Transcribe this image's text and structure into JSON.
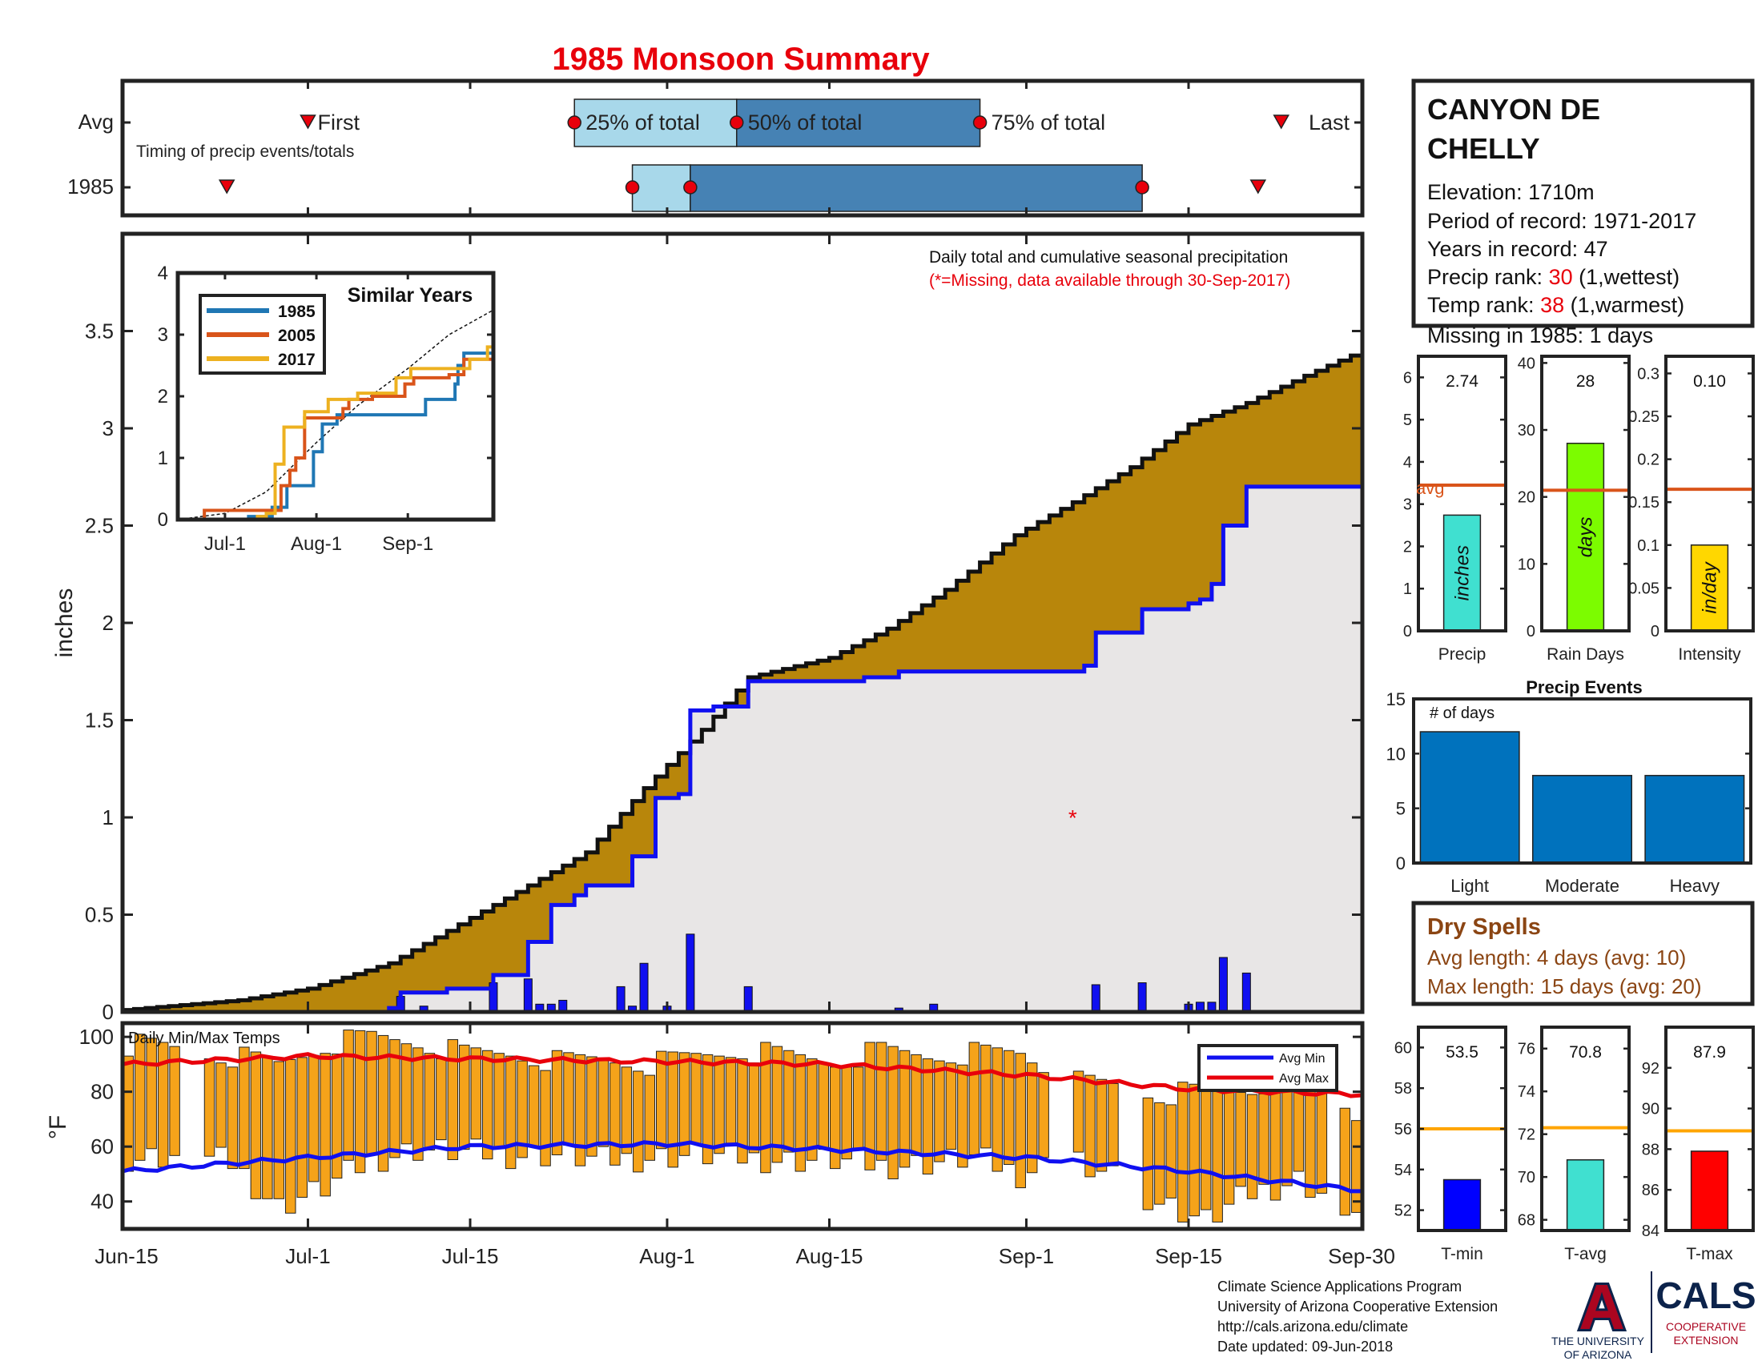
{
  "title": "1985 Monsoon Summary",
  "colors": {
    "title": "#e8000b",
    "frame": "#222222",
    "light_blue": "#a8d8ea",
    "mid_blue": "#4682b4",
    "cum_fill": "#b8860b",
    "avg_fill": "#e8e6e6",
    "daily_bar": "#1010f0",
    "avg_line": "#1010f0",
    "temp_bar": "#f5a31a",
    "max_line": "#e8000b",
    "min_line": "#1010f0",
    "series_1985": "#1f77b4",
    "series_2005": "#d9541a",
    "series_2017": "#edb120",
    "precip_bar": "#40e0d0",
    "raindays_bar": "#7cfc00",
    "intensity_bar": "#ffd700",
    "avg_ref": "#d9541a",
    "events_bar": "#0072bd",
    "dry_text": "#8b4513",
    "rank_red": "#e8000b",
    "tavg_line": "#ffa500",
    "tmin_bar": "#0000ff",
    "tavg_bar": "#40e0d0",
    "tmax_bar": "#ff0000",
    "logo_navy": "#0c234b",
    "logo_red": "#ab0520"
  },
  "timing": {
    "row_labels": [
      "Avg",
      "1985"
    ],
    "subtitle": "Timing of precip events/totals",
    "avg_labels": {
      "first": "First",
      "p25": "25% of total",
      "p50": "50% of total",
      "p75": "75% of total",
      "last": "Last"
    },
    "avg": {
      "first": "Jul-1",
      "p25": "Jul-24",
      "p50": "Aug-7",
      "p75": "Aug-28",
      "last": "Sep-23"
    },
    "year": {
      "first": "Jun-24",
      "p25": "Jul-29",
      "p50": "Aug-3",
      "p75": "Sep-11",
      "last": "Sep-21"
    }
  },
  "chart_data": [
    {
      "id": "cumulative",
      "type": "area",
      "title": "Daily total and cumulative seasonal precipitation",
      "note": "(*=Missing, data available through 30-Sep-2017)",
      "ylabel": "inches",
      "ylim": [
        0,
        4.0
      ],
      "yticks": [
        "0",
        "0.5",
        "1",
        "1.5",
        "2",
        "2.5",
        "3",
        "3.5"
      ],
      "xticks": [
        "Jun-15",
        "Jul-1",
        "Jul-15",
        "Aug-1",
        "Aug-15",
        "Sep-1",
        "Sep-15",
        "Sep-30"
      ],
      "avg_cumulative": [
        [
          "Jun-15",
          0.01
        ],
        [
          "Jun-25",
          0.06
        ],
        [
          "Jul-1",
          0.12
        ],
        [
          "Jul-8",
          0.25
        ],
        [
          "Jul-14",
          0.45
        ],
        [
          "Jul-20",
          0.65
        ],
        [
          "Jul-25",
          0.82
        ],
        [
          "Jul-30",
          1.15
        ],
        [
          "Aug-4",
          1.45
        ],
        [
          "Aug-8",
          1.72
        ],
        [
          "Aug-15",
          1.82
        ],
        [
          "Aug-20",
          1.97
        ],
        [
          "Aug-25",
          2.17
        ],
        [
          "Aug-31",
          2.45
        ],
        [
          "Sep-5",
          2.62
        ],
        [
          "Sep-10",
          2.8
        ],
        [
          "Sep-15",
          3.02
        ],
        [
          "Sep-20",
          3.13
        ],
        [
          "Sep-25",
          3.27
        ],
        [
          "Sep-30",
          3.4
        ]
      ],
      "cumulative_1985": [
        [
          "Jun-15",
          0.0
        ],
        [
          "Jul-8",
          0.02
        ],
        [
          "Jul-9",
          0.1
        ],
        [
          "Jul-12",
          0.1
        ],
        [
          "Jul-13",
          0.12
        ],
        [
          "Jul-16",
          0.12
        ],
        [
          "Jul-17",
          0.19
        ],
        [
          "Jul-19",
          0.19
        ],
        [
          "Jul-20",
          0.36
        ],
        [
          "Jul-21",
          0.36
        ],
        [
          "Jul-22",
          0.55
        ],
        [
          "Jul-24",
          0.6
        ],
        [
          "Jul-25",
          0.65
        ],
        [
          "Jul-29",
          0.8
        ],
        [
          "Jul-31",
          1.1
        ],
        [
          "Aug-2",
          1.12
        ],
        [
          "Aug-3",
          1.55
        ],
        [
          "Aug-5",
          1.57
        ],
        [
          "Aug-8",
          1.7
        ],
        [
          "Aug-18",
          1.72
        ],
        [
          "Aug-21",
          1.75
        ],
        [
          "Aug-22",
          1.75
        ],
        [
          "Sep-6",
          1.78
        ],
        [
          "Sep-7",
          1.95
        ],
        [
          "Sep-11",
          2.07
        ],
        [
          "Sep-15",
          2.1
        ],
        [
          "Sep-16",
          2.12
        ],
        [
          "Sep-17",
          2.2
        ],
        [
          "Sep-18",
          2.5
        ],
        [
          "Sep-20",
          2.7
        ],
        [
          "Sep-30",
          2.74
        ]
      ],
      "daily_1985": [
        [
          "Jul-9",
          0.08
        ],
        [
          "Jul-11",
          0.03
        ],
        [
          "Jul-17",
          0.15
        ],
        [
          "Jul-20",
          0.17
        ],
        [
          "Jul-21",
          0.04
        ],
        [
          "Jul-22",
          0.04
        ],
        [
          "Jul-23",
          0.06
        ],
        [
          "Jul-28",
          0.13
        ],
        [
          "Jul-29",
          0.03
        ],
        [
          "Jul-30",
          0.25
        ],
        [
          "Aug-1",
          0.03
        ],
        [
          "Aug-3",
          0.4
        ],
        [
          "Aug-8",
          0.13
        ],
        [
          "Aug-21",
          0.02
        ],
        [
          "Aug-24",
          0.04
        ],
        [
          "Sep-7",
          0.14
        ],
        [
          "Sep-11",
          0.15
        ],
        [
          "Sep-15",
          0.04
        ],
        [
          "Sep-16",
          0.05
        ],
        [
          "Sep-17",
          0.05
        ],
        [
          "Sep-18",
          0.28
        ],
        [
          "Sep-20",
          0.2
        ]
      ],
      "missing_marker": [
        "Sep-5",
        1.0
      ]
    },
    {
      "id": "similar_years",
      "type": "line",
      "title": "Similar Years",
      "ylim": [
        0,
        4
      ],
      "yticks": [
        "0",
        "1",
        "2",
        "3",
        "4"
      ],
      "xticks": [
        "Jul-1",
        "Aug-1",
        "Sep-1"
      ],
      "series": [
        {
          "name": "1985",
          "points": [
            [
              "Jun-15",
              0.0
            ],
            [
              "Jul-9",
              0.05
            ],
            [
              "Jul-17",
              0.2
            ],
            [
              "Jul-22",
              0.55
            ],
            [
              "Jul-31",
              1.1
            ],
            [
              "Aug-3",
              1.55
            ],
            [
              "Aug-8",
              1.7
            ],
            [
              "Sep-7",
              1.95
            ],
            [
              "Sep-17",
              2.2
            ],
            [
              "Sep-18",
              2.5
            ],
            [
              "Sep-20",
              2.7
            ],
            [
              "Sep-30",
              2.74
            ]
          ]
        },
        {
          "name": "2005",
          "points": [
            [
              "Jun-15",
              0.0
            ],
            [
              "Jun-24",
              0.15
            ],
            [
              "Jul-12",
              0.15
            ],
            [
              "Jul-20",
              0.55
            ],
            [
              "Jul-23",
              0.8
            ],
            [
              "Jul-25",
              1.0
            ],
            [
              "Jul-28",
              1.65
            ],
            [
              "Aug-10",
              1.8
            ],
            [
              "Aug-12",
              1.95
            ],
            [
              "Aug-20",
              2.0
            ],
            [
              "Aug-31",
              2.2
            ],
            [
              "Sep-3",
              2.3
            ],
            [
              "Sep-15",
              2.35
            ],
            [
              "Sep-20",
              2.6
            ],
            [
              "Sep-30",
              2.65
            ]
          ]
        },
        {
          "name": "2017",
          "points": [
            [
              "Jun-15",
              0.0
            ],
            [
              "Jul-12",
              0.05
            ],
            [
              "Jul-15",
              0.1
            ],
            [
              "Jul-18",
              0.9
            ],
            [
              "Jul-21",
              1.5
            ],
            [
              "Jul-28",
              1.75
            ],
            [
              "Aug-5",
              1.95
            ],
            [
              "Aug-15",
              2.05
            ],
            [
              "Aug-28",
              2.3
            ],
            [
              "Sep-2",
              2.45
            ],
            [
              "Sep-15",
              2.45
            ],
            [
              "Sep-22",
              2.6
            ],
            [
              "Sep-28",
              2.8
            ],
            [
              "Sep-30",
              3.1
            ]
          ]
        }
      ],
      "avg_line": [
        [
          "Jun-15",
          0.0
        ],
        [
          "Jul-1",
          0.1
        ],
        [
          "Jul-15",
          0.45
        ],
        [
          "Aug-1",
          1.25
        ],
        [
          "Aug-15",
          1.85
        ],
        [
          "Sep-1",
          2.45
        ],
        [
          "Sep-15",
          3.0
        ],
        [
          "Sep-30",
          3.4
        ]
      ]
    },
    {
      "id": "temps",
      "type": "bar",
      "title": "Daily Min/Max Temps",
      "ylabel": "°F",
      "ylim": [
        30,
        105
      ],
      "yticks": [
        "40",
        "60",
        "80",
        "100"
      ],
      "legend": [
        "Avg Min",
        "Avg Max"
      ],
      "daily_range_sample": [
        [
          "Jun-16",
          56,
          97
        ],
        [
          "Jun-20",
          57,
          95
        ],
        [
          "Jun-24",
          54,
          93
        ],
        [
          "Jun-28",
          38,
          90
        ],
        [
          "Jul-2",
          45,
          97
        ],
        [
          "Jul-6",
          55,
          100
        ],
        [
          "Jul-10",
          59,
          98
        ],
        [
          "Jul-14",
          58,
          94
        ],
        [
          "Jul-18",
          57,
          94
        ],
        [
          "Jul-22",
          57,
          91
        ],
        [
          "Jul-26",
          55,
          92
        ],
        [
          "Jul-30",
          56,
          90
        ],
        [
          "Aug-3",
          57,
          93
        ],
        [
          "Aug-7",
          56,
          95
        ],
        [
          "Aug-11",
          55,
          93
        ],
        [
          "Aug-15",
          55,
          91
        ],
        [
          "Aug-19",
          53,
          95
        ],
        [
          "Aug-23",
          54,
          93
        ],
        [
          "Aug-27",
          56,
          94
        ],
        [
          "Aug-31",
          50,
          94
        ],
        [
          "Sep-4",
          56,
          84
        ],
        [
          "Sep-8",
          48,
          82
        ],
        [
          "Sep-12",
          40,
          79
        ],
        [
          "Sep-16",
          33,
          80
        ],
        [
          "Sep-20",
          43,
          81
        ],
        [
          "Sep-24",
          48,
          86
        ],
        [
          "Sep-28",
          38,
          75
        ],
        [
          "Sep-30",
          32,
          68
        ]
      ],
      "avg_max": [
        [
          "Jun-15",
          90
        ],
        [
          "Jul-1",
          93
        ],
        [
          "Jul-15",
          92
        ],
        [
          "Aug-1",
          91
        ],
        [
          "Aug-15",
          90
        ],
        [
          "Sep-1",
          86
        ],
        [
          "Sep-15",
          81
        ],
        [
          "Sep-30",
          79
        ]
      ],
      "avg_min": [
        [
          "Jun-15",
          51
        ],
        [
          "Jul-1",
          56
        ],
        [
          "Jul-15",
          60
        ],
        [
          "Aug-1",
          61
        ],
        [
          "Aug-15",
          59
        ],
        [
          "Sep-1",
          56
        ],
        [
          "Sep-15",
          51
        ],
        [
          "Sep-30",
          44
        ]
      ]
    },
    {
      "id": "season_totals",
      "type": "bar",
      "panels": [
        {
          "label": "Precip",
          "unit": "inches",
          "value": 2.74,
          "value_label": "2.74",
          "avg": 3.45,
          "ylim": [
            0,
            6.5
          ],
          "yticks": [
            "0",
            "1",
            "2",
            "3",
            "4",
            "5",
            "6"
          ]
        },
        {
          "label": "Rain Days",
          "unit": "days",
          "value": 28,
          "value_label": "28",
          "avg": 21,
          "ylim": [
            0,
            41
          ],
          "yticks": [
            "0",
            "10",
            "20",
            "30",
            "40"
          ]
        },
        {
          "label": "Intensity",
          "unit": "in/day",
          "value": 0.1,
          "value_label": "0.10",
          "avg": 0.165,
          "ylim": [
            0,
            0.32
          ],
          "yticks": [
            "0",
            "0.05",
            "0.1",
            "0.15",
            "0.2",
            "0.25",
            "0.3"
          ]
        }
      ],
      "avg_label": "avg"
    },
    {
      "id": "precip_events",
      "type": "bar",
      "title": "Precip Events",
      "ylabel": "# of days",
      "categories": [
        "Light",
        "Moderate",
        "Heavy"
      ],
      "values": [
        12,
        8,
        8
      ],
      "ylim": [
        0,
        15
      ],
      "yticks": [
        "0",
        "5",
        "10",
        "15"
      ]
    },
    {
      "id": "season_temps",
      "type": "bar",
      "panels": [
        {
          "label": "T-min",
          "value": 53.5,
          "value_label": "53.5",
          "avg": 56,
          "ylim": [
            51,
            61
          ],
          "yticks": [
            "52",
            "54",
            "56",
            "58",
            "60"
          ]
        },
        {
          "label": "T-avg",
          "value": 70.8,
          "value_label": "70.8",
          "avg": 72.3,
          "ylim": [
            67.5,
            77
          ],
          "yticks": [
            "68",
            "70",
            "72",
            "74",
            "76"
          ]
        },
        {
          "label": "T-max",
          "value": 87.9,
          "value_label": "87.9",
          "avg": 88.9,
          "ylim": [
            84,
            94
          ],
          "yticks": [
            "84",
            "86",
            "88",
            "90",
            "92"
          ]
        }
      ]
    }
  ],
  "station": {
    "name_line1": "CANYON DE",
    "name_line2": "CHELLY",
    "elevation": "Elevation: 1710m",
    "period": "Period of record: 1971-2017",
    "years": "Years in record: 47",
    "precip_rank_label": "Precip rank: ",
    "precip_rank": "30",
    "precip_rank_note": " (1,wettest)",
    "temp_rank_label": "Temp rank: ",
    "temp_rank": "38",
    "temp_rank_note": " (1,warmest)",
    "missing": "Missing in 1985: 1 days"
  },
  "dry_spells": {
    "title": "Dry Spells",
    "avg_length": "Avg length: 4 days (avg: 10)",
    "max_length": "Max length: 15 days (avg: 20)"
  },
  "footer": {
    "line1": "Climate Science Applications Program",
    "line2": "University of Arizona Cooperative Extension",
    "line3": "http://cals.arizona.edu/climate",
    "line4": " Date updated: 09-Jun-2018"
  },
  "logos": {
    "ua_letter": "A",
    "ua_line1": "THE UNIVERSITY",
    "ua_line2": "OF ARIZONA",
    "cals": "CALS",
    "cals_line1": "COOPERATIVE",
    "cals_line2": "EXTENSION"
  }
}
